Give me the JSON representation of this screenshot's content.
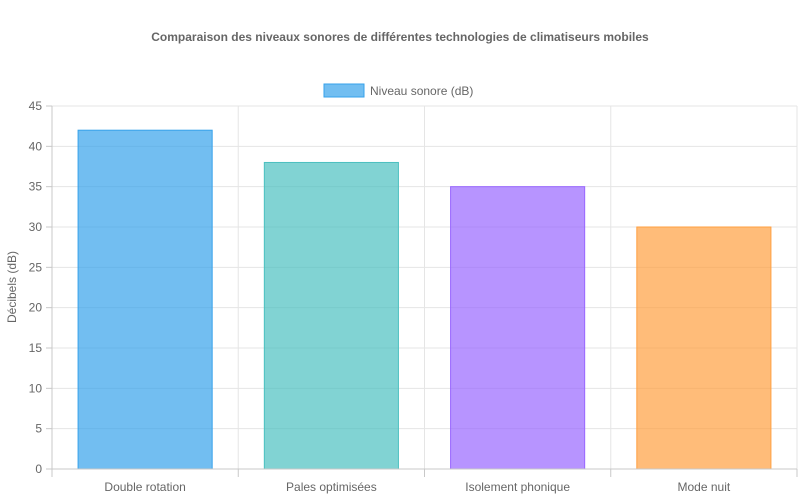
{
  "chart_data": {
    "type": "bar",
    "title": "Comparaison des niveaux sonores de différentes technologies de climatiseurs mobiles",
    "xlabel": "",
    "ylabel": "Décibels (dB)",
    "categories": [
      "Double rotation",
      "Pales optimisées",
      "Isolement phonique",
      "Mode nuit"
    ],
    "series": [
      {
        "name": "Niveau sonore (dB)",
        "values": [
          42,
          38,
          35,
          30
        ],
        "colors": [
          "#36a2eb",
          "#4bc0c0",
          "#9966ff",
          "#ff9f40"
        ]
      }
    ],
    "ylim": [
      0,
      45
    ],
    "yticks": [
      0,
      5,
      10,
      15,
      20,
      25,
      30,
      35,
      40,
      45
    ],
    "grid": true,
    "legend_position": "top-center"
  }
}
